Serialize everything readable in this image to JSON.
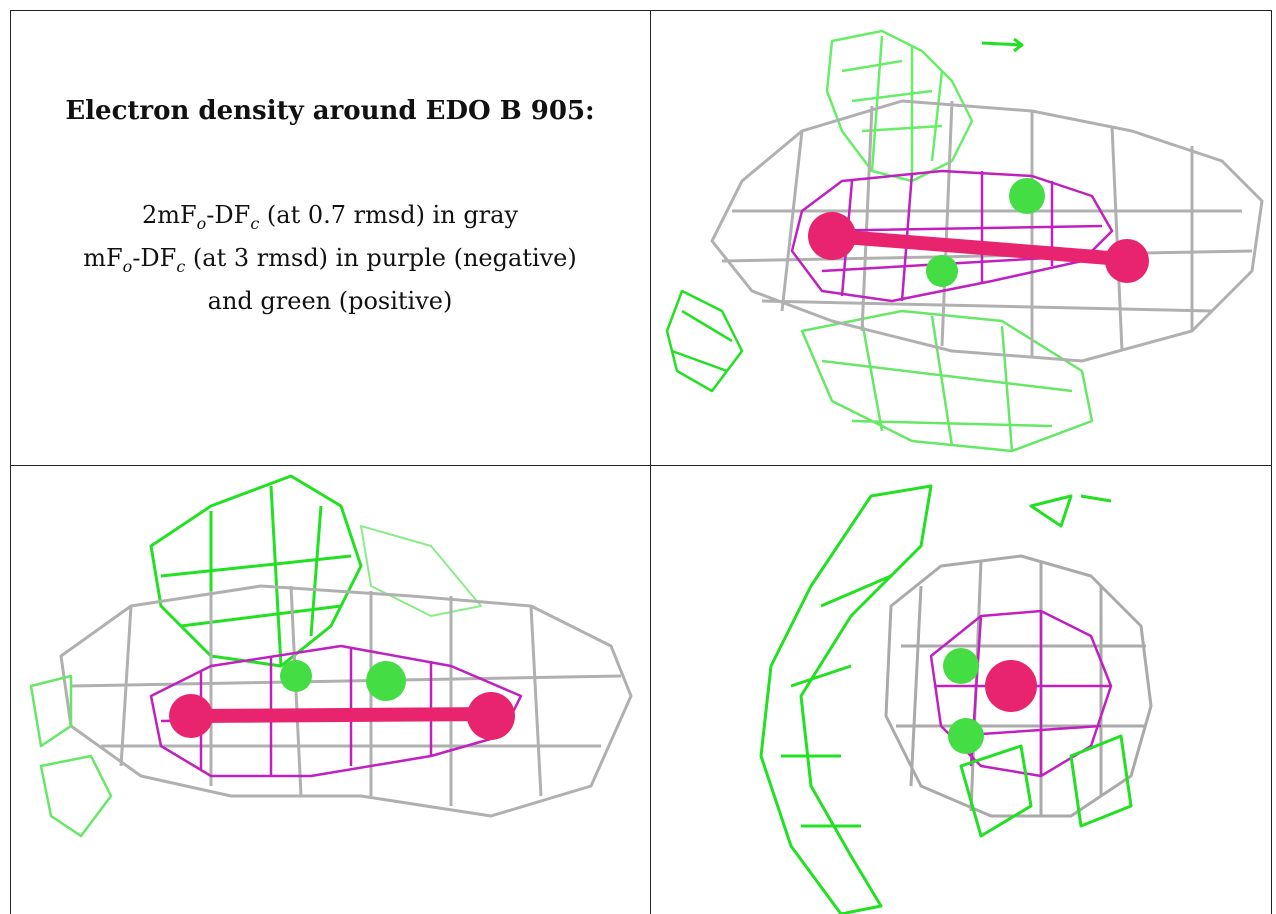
{
  "caption": {
    "title": "Electron density around EDO B 905:",
    "line1_prefix": "2mF",
    "line1_sub1": "o",
    "line1_mid": "-DF",
    "line1_sub2": "c",
    "line1_suffix": " (at 0.7 rmsd) in gray",
    "line2_prefix": "mF",
    "line2_sub1": "o",
    "line2_mid": "-DF",
    "line2_sub2": "c",
    "line2_suffix": " (at 3 rmsd) in purple (negative)",
    "line3": "and green (positive)"
  },
  "colors": {
    "gray_mesh": "#a8a8a8",
    "purple_mesh": "#c020c0",
    "green_mesh": "#22e022",
    "oxygen_atom": "#e8246e",
    "carbon_atom": "#44dd44"
  },
  "panels": [
    {
      "name": "view-top-right"
    },
    {
      "name": "view-bottom-left"
    },
    {
      "name": "view-bottom-right"
    }
  ]
}
